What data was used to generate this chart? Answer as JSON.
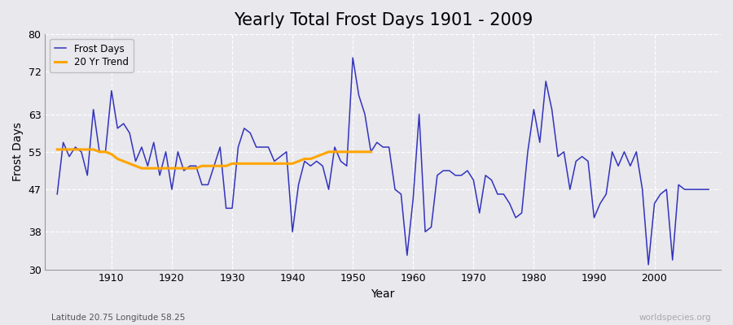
{
  "title": "Yearly Total Frost Days 1901 - 2009",
  "xlabel": "Year",
  "ylabel": "Frost Days",
  "subtitle": "Latitude 20.75 Longitude 58.25",
  "watermark": "worldspecies.org",
  "frost_days": {
    "years": [
      1901,
      1902,
      1903,
      1904,
      1905,
      1906,
      1907,
      1908,
      1909,
      1910,
      1911,
      1912,
      1913,
      1914,
      1915,
      1916,
      1917,
      1918,
      1919,
      1920,
      1921,
      1922,
      1923,
      1924,
      1925,
      1926,
      1927,
      1928,
      1929,
      1930,
      1931,
      1932,
      1933,
      1934,
      1935,
      1936,
      1937,
      1938,
      1939,
      1940,
      1941,
      1942,
      1943,
      1944,
      1945,
      1946,
      1947,
      1948,
      1949,
      1950,
      1951,
      1952,
      1953,
      1954,
      1955,
      1956,
      1957,
      1958,
      1959,
      1960,
      1961,
      1962,
      1963,
      1964,
      1965,
      1966,
      1967,
      1968,
      1969,
      1970,
      1971,
      1972,
      1973,
      1974,
      1975,
      1976,
      1977,
      1978,
      1979,
      1980,
      1981,
      1982,
      1983,
      1984,
      1985,
      1986,
      1987,
      1988,
      1989,
      1990,
      1991,
      1992,
      1993,
      1994,
      1995,
      1996,
      1997,
      1998,
      1999,
      2000,
      2001,
      2002,
      2003,
      2004,
      2005,
      2006,
      2007,
      2008,
      2009
    ],
    "values": [
      46,
      57,
      54,
      56,
      55,
      50,
      64,
      55,
      55,
      68,
      60,
      61,
      59,
      53,
      56,
      52,
      57,
      50,
      55,
      47,
      55,
      51,
      52,
      52,
      48,
      48,
      52,
      56,
      43,
      43,
      56,
      60,
      59,
      56,
      56,
      56,
      53,
      54,
      55,
      38,
      48,
      53,
      52,
      53,
      52,
      47,
      56,
      53,
      52,
      75,
      67,
      63,
      55,
      57,
      56,
      56,
      47,
      46,
      33,
      45,
      63,
      38,
      39,
      50,
      51,
      51,
      50,
      50,
      51,
      49,
      42,
      50,
      49,
      46,
      46,
      44,
      41,
      42,
      55,
      64,
      57,
      70,
      64,
      54,
      55,
      47,
      53,
      54,
      53,
      41,
      44,
      46,
      55,
      52,
      55,
      52,
      55,
      47,
      31,
      44,
      46,
      47,
      32,
      48,
      47,
      47,
      47,
      47,
      47
    ]
  },
  "trend_20yr": {
    "years": [
      1901,
      1902,
      1903,
      1904,
      1905,
      1906,
      1907,
      1908,
      1909,
      1910,
      1911,
      1912,
      1913,
      1914,
      1915,
      1916,
      1917,
      1918,
      1919,
      1920,
      1921,
      1922,
      1923,
      1924,
      1925,
      1926,
      1927,
      1928,
      1929,
      1930,
      1931,
      1932,
      1933,
      1934,
      1935,
      1936,
      1937,
      1938,
      1939,
      1940,
      1941,
      1942,
      1943,
      1944,
      1945,
      1946,
      1947,
      1948,
      1949,
      1950,
      1951,
      1952,
      1953
    ],
    "values": [
      55.5,
      55.5,
      55.5,
      55.5,
      55.5,
      55.5,
      55.5,
      55.0,
      55.0,
      54.5,
      53.5,
      53.0,
      52.5,
      52.0,
      51.5,
      51.5,
      51.5,
      51.5,
      51.5,
      51.5,
      51.5,
      51.5,
      51.5,
      51.5,
      52.0,
      52.0,
      52.0,
      52.0,
      52.0,
      52.5,
      52.5,
      52.5,
      52.5,
      52.5,
      52.5,
      52.5,
      52.5,
      52.5,
      52.5,
      52.5,
      53.0,
      53.5,
      53.5,
      54.0,
      54.5,
      55.0,
      55.0,
      55.0,
      55.0,
      55.0,
      55.0,
      55.0,
      55.0
    ]
  },
  "line_color": "#3333bb",
  "trend_color": "#FFA500",
  "background_color": "#e8e8ed",
  "plot_bg_color": "#e8e8ed",
  "ylim": [
    30,
    80
  ],
  "yticks": [
    30,
    38,
    47,
    55,
    63,
    72,
    80
  ],
  "xlim_start": 1899,
  "xlim_end": 2011,
  "xticks": [
    1910,
    1920,
    1930,
    1940,
    1950,
    1960,
    1970,
    1980,
    1990,
    2000
  ],
  "title_fontsize": 15,
  "axis_label_fontsize": 10,
  "tick_fontsize": 9
}
